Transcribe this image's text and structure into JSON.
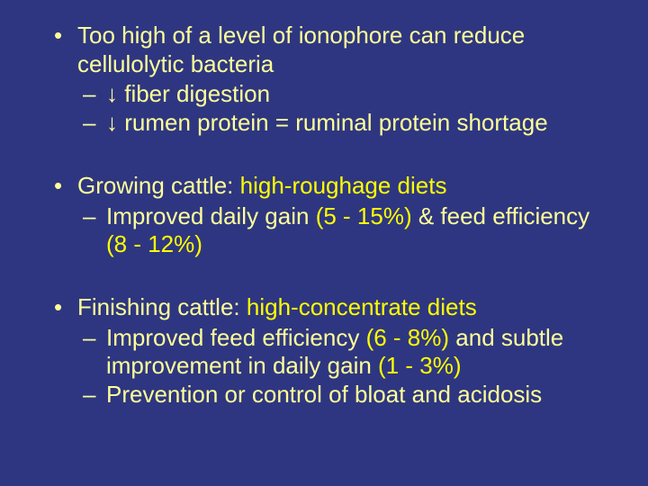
{
  "background_color": "#2e3681",
  "text_color": "#ffff99",
  "accent_color": "#ffff00",
  "font_family": "Arial",
  "base_fontsize_pt": 20,
  "bullets": {
    "b1": {
      "text": "Too high of a level of ionophore can reduce cellulolytic bacteria",
      "sub1_arrow": "↓",
      "sub1_text": " fiber digestion",
      "sub2_arrow": "↓",
      "sub2_text": " rumen protein = ruminal protein shortage"
    },
    "b2": {
      "lead": "Growing cattle:  ",
      "highlight": "high-roughage diets",
      "sub1_a": "Improved daily gain ",
      "sub1_pct1": "(5 - 15%)",
      "sub1_b": " & feed efficiency ",
      "sub1_pct2": "(8 - 12%)"
    },
    "b3": {
      "lead": "Finishing cattle:  ",
      "highlight": "high-concentrate diets",
      "sub1_a": "Improved feed efficiency ",
      "sub1_pct1": "(6 - 8%)",
      "sub1_b": " and subtle improvement in daily gain ",
      "sub1_pct2": "(1 - 3%)",
      "sub2": "Prevention or control of bloat and acidosis"
    }
  }
}
